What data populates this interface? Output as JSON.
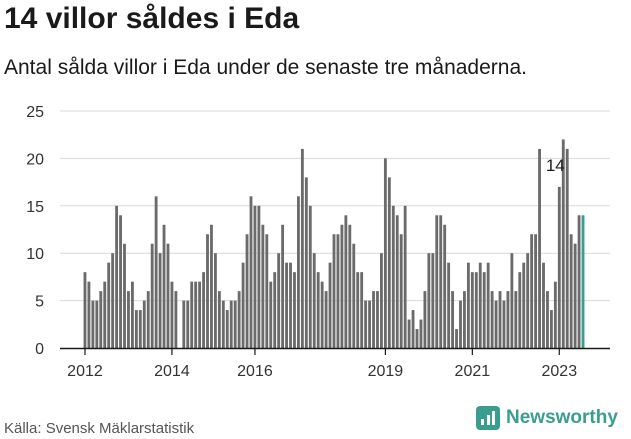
{
  "title": "14 villor såldes i Eda",
  "subtitle": "Antal sålda villor i Eda under de senaste tre månaderna.",
  "source": "Källa: Svensk Mäklarstatistik",
  "brand": "Newsworthy",
  "colors": {
    "bar": "#6b6b6b",
    "highlight": "#3a9e8f",
    "grid": "#d9d9d9"
  },
  "chart_data": {
    "type": "bar",
    "x_tick_labels": [
      "2012",
      "2014",
      "2016",
      "2019",
      "2021",
      "2023"
    ],
    "x_tick_indices": [
      0,
      22,
      43,
      76,
      98,
      120
    ],
    "ylim": [
      0,
      25
    ],
    "yticks": [
      0,
      5,
      10,
      15,
      20,
      25
    ],
    "grid": true,
    "annotation": {
      "label": "14",
      "index": 120
    },
    "values": [
      8,
      7,
      5,
      5,
      6,
      7,
      9,
      10,
      15,
      14,
      11,
      6,
      7,
      4,
      4,
      5,
      6,
      11,
      16,
      10,
      13,
      11,
      7,
      6,
      0,
      5,
      5,
      7,
      7,
      7,
      8,
      12,
      13,
      10,
      6,
      5,
      4,
      5,
      5,
      6,
      9,
      12,
      16,
      15,
      15,
      13,
      12,
      7,
      8,
      10,
      13,
      9,
      9,
      8,
      16,
      21,
      18,
      15,
      10,
      8,
      7,
      6,
      9,
      12,
      12,
      13,
      14,
      13,
      11,
      8,
      8,
      5,
      5,
      6,
      6,
      10,
      20,
      18,
      15,
      14,
      12,
      15,
      3,
      4,
      2,
      3,
      6,
      10,
      10,
      14,
      14,
      13,
      9,
      6,
      2,
      5,
      6,
      9,
      8,
      8,
      9,
      8,
      9,
      6,
      5,
      6,
      5,
      6,
      10,
      6,
      8,
      9,
      10,
      12,
      12,
      21,
      9,
      6,
      4,
      7,
      17,
      22,
      21,
      12,
      11,
      14,
      14
    ]
  }
}
